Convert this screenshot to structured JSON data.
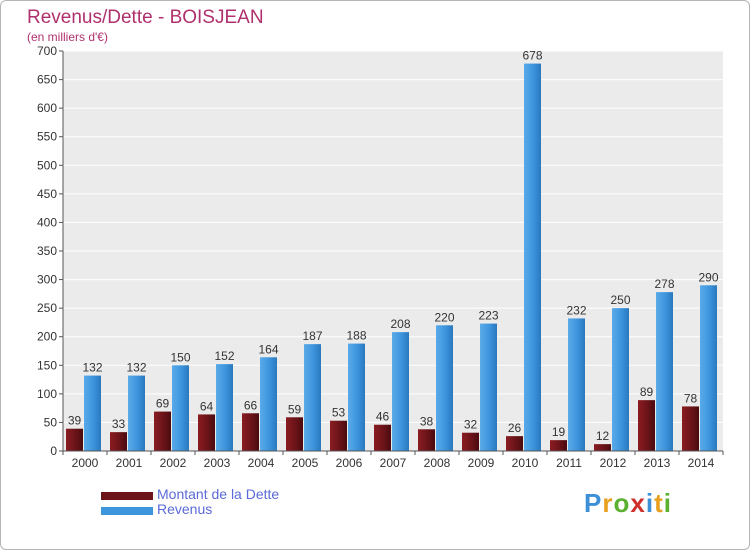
{
  "header": {
    "title": "Revenus/Dette - BOISJEAN",
    "subtitle": "(en milliers d'€)"
  },
  "chart_data": {
    "type": "bar",
    "categories": [
      "2000",
      "2001",
      "2002",
      "2003",
      "2004",
      "2005",
      "2006",
      "2007",
      "2008",
      "2009",
      "2010",
      "2011",
      "2012",
      "2013",
      "2014"
    ],
    "series": [
      {
        "name": "Montant de la Dette",
        "color": "#6b1318",
        "values": [
          39,
          33,
          69,
          64,
          66,
          59,
          53,
          46,
          38,
          32,
          26,
          19,
          12,
          89,
          78
        ]
      },
      {
        "name": "Revenus",
        "color": "#3d95dd",
        "values": [
          132,
          132,
          150,
          152,
          164,
          187,
          188,
          208,
          220,
          223,
          678,
          232,
          250,
          278,
          290
        ]
      }
    ],
    "ylim": [
      0,
      700
    ],
    "yticks": [
      0,
      50,
      100,
      150,
      200,
      250,
      300,
      350,
      400,
      450,
      500,
      550,
      600,
      650,
      700
    ],
    "grid": true,
    "legend_position": "bottom-left"
  },
  "legend": {
    "items": [
      {
        "label": "Montant de la Dette",
        "color": "#6b1318"
      },
      {
        "label": "Revenus",
        "color": "#3d95dd"
      }
    ]
  },
  "logo": {
    "letters": [
      "P",
      "r",
      "o",
      "x",
      "i",
      "t",
      "i"
    ],
    "colors": [
      "#3d8fd6",
      "#e8a020",
      "#5bb030",
      "#d0302c",
      "#3d8fd6",
      "#e8a020",
      "#5bb030"
    ]
  }
}
